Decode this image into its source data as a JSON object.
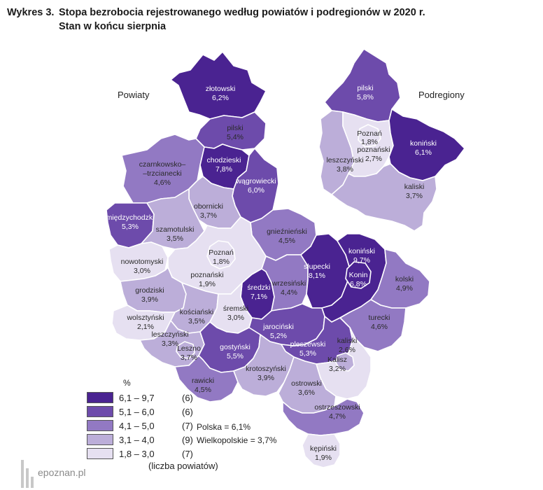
{
  "title": {
    "number": "Wykres 3.",
    "text": "Stopa bezrobocia rejestrowanego według powiatów i podregionów w 2020 r.",
    "subtitle": "Stan w końcu sierpnia"
  },
  "sections": {
    "powiaty": "Powiaty",
    "podregiony": "Podregiony"
  },
  "colors": {
    "c1": "#4a2391",
    "c2": "#6d4bab",
    "c3": "#9279c3",
    "c4": "#bcaed9",
    "c5": "#e6e0f1",
    "border": "#ffffff"
  },
  "powiaty": [
    {
      "name": "złotowski",
      "value": "6,2%",
      "cls": "c1"
    },
    {
      "name": "pilski",
      "value": "5,4%",
      "cls": "c2"
    },
    {
      "name": "chodzieski",
      "value": "7,8%",
      "cls": "c1"
    },
    {
      "name": "czarnkowsko–\n–trzcianecki",
      "value": "4,6%",
      "cls": "c3"
    },
    {
      "name": "wągrowiecki",
      "value": "6,0%",
      "cls": "c2"
    },
    {
      "name": "obornicki",
      "value": "3,7%",
      "cls": "c4"
    },
    {
      "name": "międzychodzki",
      "value": "5,3%",
      "cls": "c2"
    },
    {
      "name": "szamotulski",
      "value": "3,5%",
      "cls": "c4"
    },
    {
      "name": "gnieźnieński",
      "value": "4,5%",
      "cls": "c3"
    },
    {
      "name": "nowotomyski",
      "value": "3,0%",
      "cls": "c5"
    },
    {
      "name": "Poznań",
      "value": "1,8%",
      "cls": "c5"
    },
    {
      "name": "poznański",
      "value": "1,9%",
      "cls": "c5"
    },
    {
      "name": "średzki",
      "value": "7,1%",
      "cls": "c1"
    },
    {
      "name": "słupecki",
      "value": "8,1%",
      "cls": "c1"
    },
    {
      "name": "koniński",
      "value": "9,7%",
      "cls": "c1"
    },
    {
      "name": "Konin",
      "value": "6,8%",
      "cls": "c1"
    },
    {
      "name": "kolski",
      "value": "4,9%",
      "cls": "c3"
    },
    {
      "name": "wrzesiński",
      "value": "4,4%",
      "cls": "c3"
    },
    {
      "name": "grodziski",
      "value": "3,9%",
      "cls": "c4"
    },
    {
      "name": "kościański",
      "value": "3,5%",
      "cls": "c4"
    },
    {
      "name": "śremski",
      "value": "3,0%",
      "cls": "c5"
    },
    {
      "name": "wolsztyński",
      "value": "2,1%",
      "cls": "c5"
    },
    {
      "name": "jarociński",
      "value": "5,2%",
      "cls": "c2"
    },
    {
      "name": "turecki",
      "value": "4,6%",
      "cls": "c3"
    },
    {
      "name": "leszczyński",
      "value": "3,3%",
      "cls": "c4"
    },
    {
      "name": "Leszno",
      "value": "3,7%",
      "cls": "c4"
    },
    {
      "name": "gostyński",
      "value": "5,5%",
      "cls": "c2"
    },
    {
      "name": "pleszewski",
      "value": "5,3%",
      "cls": "c2"
    },
    {
      "name": "kaliski",
      "value": "2,6%",
      "cls": "c5"
    },
    {
      "name": "Kalisz",
      "value": "3,2%",
      "cls": "c4"
    },
    {
      "name": "krotoszyński",
      "value": "3,9%",
      "cls": "c4"
    },
    {
      "name": "rawicki",
      "value": "4,5%",
      "cls": "c3"
    },
    {
      "name": "ostrowski",
      "value": "3,6%",
      "cls": "c4"
    },
    {
      "name": "ostrzeszowski",
      "value": "4,7%",
      "cls": "c3"
    },
    {
      "name": "kępiński",
      "value": "1,9%",
      "cls": "c5"
    }
  ],
  "podregiony": [
    {
      "name": "pilski",
      "value": "5,8%",
      "cls": "c2"
    },
    {
      "name": "Poznań",
      "value": "1,8%",
      "cls": "c5"
    },
    {
      "name": "poznański",
      "value": "2,7%",
      "cls": "c5"
    },
    {
      "name": "koniński",
      "value": "6,1%",
      "cls": "c1"
    },
    {
      "name": "leszczyński",
      "value": "3,8%",
      "cls": "c4"
    },
    {
      "name": "kaliski",
      "value": "3,7%",
      "cls": "c4"
    }
  ],
  "legend": {
    "unit": "%",
    "items": [
      {
        "range": "6,1 – 9,7",
        "count": "(6)",
        "cls": "c1"
      },
      {
        "range": "5,1 – 6,0",
        "count": "(6)",
        "cls": "c2"
      },
      {
        "range": "4,1 – 5,0",
        "count": "(7)",
        "cls": "c3"
      },
      {
        "range": "3,1 – 4,0",
        "count": "(9)",
        "cls": "c4"
      },
      {
        "range": "1,8 – 3,0",
        "count": "(7)",
        "cls": "c5"
      }
    ],
    "note": "(liczba powiatów)"
  },
  "totals": {
    "polska": "Polska = 6,1%",
    "wielkopolskie": "Wielkopolskie = 3,7%"
  },
  "watermark": "epoznan.pl"
}
